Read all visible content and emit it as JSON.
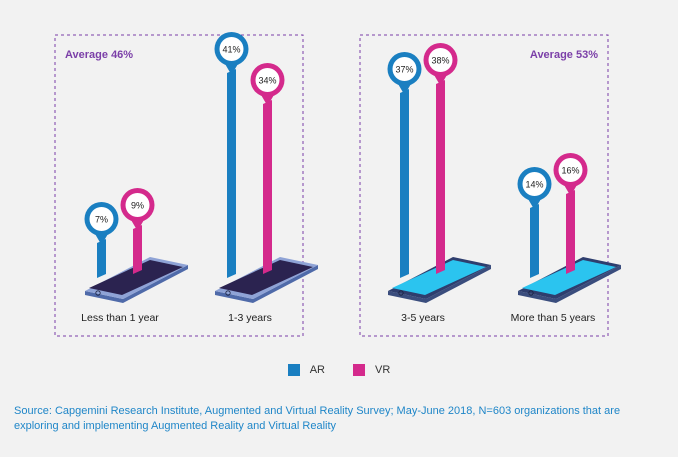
{
  "colors": {
    "ar": "#1a7fc1",
    "vr": "#d42a8c",
    "accent_purple": "#7b3fa8",
    "source_text": "#1f86c8"
  },
  "chart_data": {
    "type": "bar",
    "categories": [
      "Less than 1 year",
      "1-3 years",
      "3-5 years",
      "More than 5 years"
    ],
    "series": [
      {
        "name": "AR",
        "values": [
          7,
          41,
          37,
          14
        ]
      },
      {
        "name": "VR",
        "values": [
          9,
          34,
          38,
          16
        ]
      }
    ],
    "value_labels": {
      "AR": [
        "7%",
        "41%",
        "37%",
        "14%"
      ],
      "VR": [
        "9%",
        "34%",
        "38%",
        "16%"
      ]
    },
    "groups": [
      {
        "average_label": "Average 46%",
        "categories": [
          "Less than 1 year",
          "1-3 years"
        ],
        "phone_screen": "dark"
      },
      {
        "average_label": "Average 53%",
        "categories": [
          "3-5 years",
          "More than 5 years"
        ],
        "phone_screen": "light"
      }
    ],
    "ylim": [
      0,
      45
    ],
    "grid": false,
    "legend_position": "bottom-center"
  },
  "legend": {
    "ar_label": "AR",
    "vr_label": "VR"
  },
  "source": "Source: Capgemini Research Institute, Augmented and Virtual Reality Survey; May-June 2018, N=603 organizations that are exploring and implementing Augmented Reality and Virtual Reality"
}
